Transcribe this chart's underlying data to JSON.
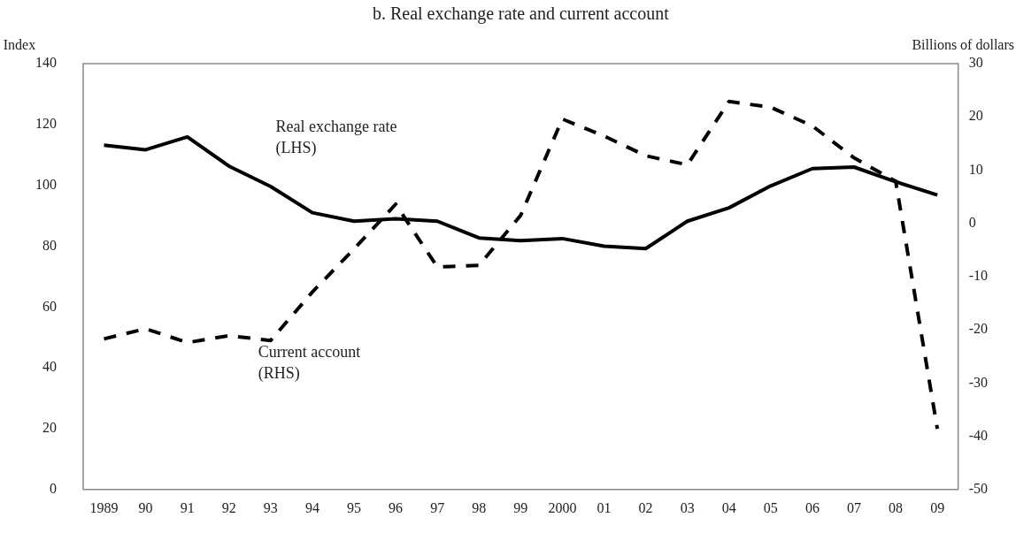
{
  "chart_data": {
    "type": "line",
    "title": "b. Real exchange rate and current account",
    "ylabel": "Index",
    "y2label": "Billions of dollars",
    "categories": [
      "1989",
      "90",
      "91",
      "92",
      "93",
      "94",
      "95",
      "96",
      "97",
      "98",
      "99",
      "2000",
      "01",
      "02",
      "03",
      "04",
      "05",
      "06",
      "07",
      "08",
      "09"
    ],
    "series": [
      {
        "name": "Real exchange rate (LHS)",
        "color": "#000000",
        "line_style": "solid",
        "values": [
          113.2,
          111.7,
          115.9,
          106.3,
          99.6,
          91,
          88.2,
          89,
          88.2,
          82.7,
          81.8,
          82.5,
          80,
          79.2,
          88.2,
          92.6,
          99.8,
          105.5,
          106,
          101.2,
          96.8
        ]
      },
      {
        "name": "Current account (RHS)",
        "color": "#000000",
        "line_style": "dashed",
        "axis": "y2",
        "values": [
          -21.7,
          -19.8,
          -22.4,
          -21.1,
          -22,
          -12.9,
          -4.8,
          3.6,
          -8.2,
          -7.9,
          1.5,
          19.6,
          16.4,
          12.7,
          11,
          22.9,
          21.8,
          18.3,
          12.3,
          7.9,
          -38.6
        ]
      }
    ],
    "ylim": [
      0,
      140
    ],
    "yticks": [
      0,
      20,
      40,
      60,
      80,
      100,
      120,
      140
    ],
    "y2lim": [
      -50,
      30
    ],
    "y2ticks": [
      -50,
      -40,
      -30,
      -20,
      -10,
      0,
      10,
      20,
      30
    ],
    "grid": false,
    "legend": false,
    "marker": "none"
  }
}
